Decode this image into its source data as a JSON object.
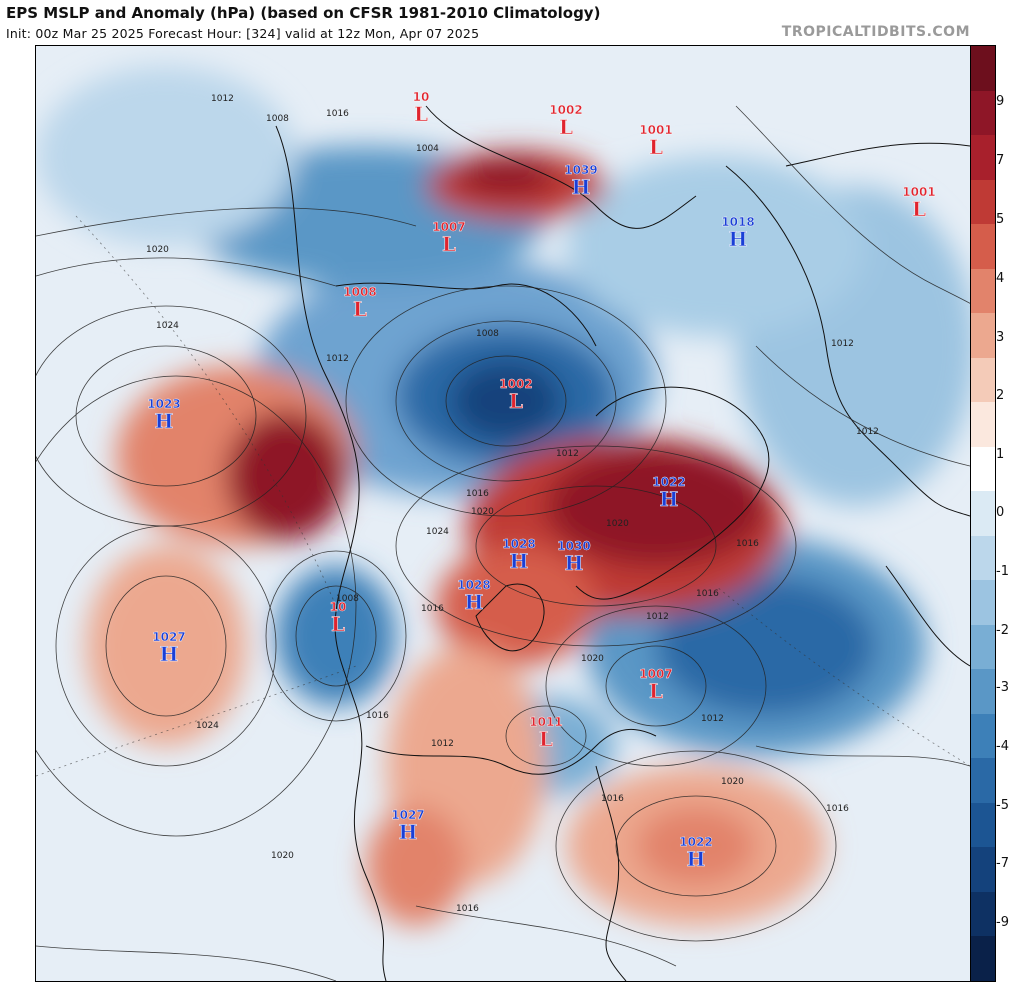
{
  "header": {
    "title": "EPS MSLP and Anomaly (hPa) (based on CFSR 1981-2010 Climatology)",
    "subtitle": "Init: 00z Mar 25 2025   Forecast Hour: [324]   valid at 12z Mon, Apr 07 2025",
    "credit": "TROPICALTIDBITS.COM"
  },
  "colorbar": {
    "labels": [
      "9",
      "7",
      "5",
      "4",
      "3",
      "2",
      "1",
      "0",
      "-1",
      "-2",
      "-3",
      "-4",
      "-5",
      "-7",
      "-9"
    ],
    "colors": [
      "#6d0f1d",
      "#8e1627",
      "#a8202c",
      "#bf3a35",
      "#d55d4b",
      "#e2836b",
      "#eca88f",
      "#f4cbb8",
      "#fbe8de",
      "#ffffff",
      "#dbeaf4",
      "#bcd7eb",
      "#9cc4e1",
      "#79aed4",
      "#5a97c6",
      "#3d80b8",
      "#2a69a6",
      "#1c5593",
      "#14427c",
      "#0e3163",
      "#0a2149"
    ]
  },
  "pressure_centers": [
    {
      "type": "L",
      "value": "1002",
      "color": "red"
    },
    {
      "type": "L",
      "value": "1001",
      "color": "red"
    },
    {
      "type": "L",
      "value": "10",
      "color": "red"
    },
    {
      "type": "H",
      "value": "1039",
      "color": "blue"
    },
    {
      "type": "L",
      "value": "1007",
      "color": "red"
    },
    {
      "type": "H",
      "value": "1018",
      "color": "blue"
    },
    {
      "type": "L",
      "value": "1001",
      "color": "red"
    },
    {
      "type": "L",
      "value": "1008",
      "color": "red"
    },
    {
      "type": "L",
      "value": "1002",
      "color": "red"
    },
    {
      "type": "H",
      "value": "1023",
      "color": "blue"
    },
    {
      "type": "H",
      "value": "1022",
      "color": "blue"
    },
    {
      "type": "H",
      "value": "1028",
      "color": "blue"
    },
    {
      "type": "H",
      "value": "1030",
      "color": "blue"
    },
    {
      "type": "H",
      "value": "1028",
      "color": "blue"
    },
    {
      "type": "L",
      "value": "10",
      "color": "red"
    },
    {
      "type": "H",
      "value": "1027",
      "color": "blue"
    },
    {
      "type": "L",
      "value": "1007",
      "color": "red"
    },
    {
      "type": "L",
      "value": "1011",
      "color": "red"
    },
    {
      "type": "H",
      "value": "1027",
      "color": "blue"
    },
    {
      "type": "H",
      "value": "1022",
      "color": "blue"
    }
  ],
  "contour_labels": [
    "1012",
    "1016",
    "1020",
    "1024",
    "1012",
    "1008",
    "1012",
    "1016",
    "1020",
    "1024",
    "1020",
    "1016",
    "1012",
    "1016",
    "1020",
    "1024",
    "1016",
    "1012",
    "1016",
    "1020",
    "1012",
    "1008",
    "1016",
    "1012",
    "1004",
    "1008",
    "1016",
    "1012",
    "1016",
    "1020"
  ]
}
